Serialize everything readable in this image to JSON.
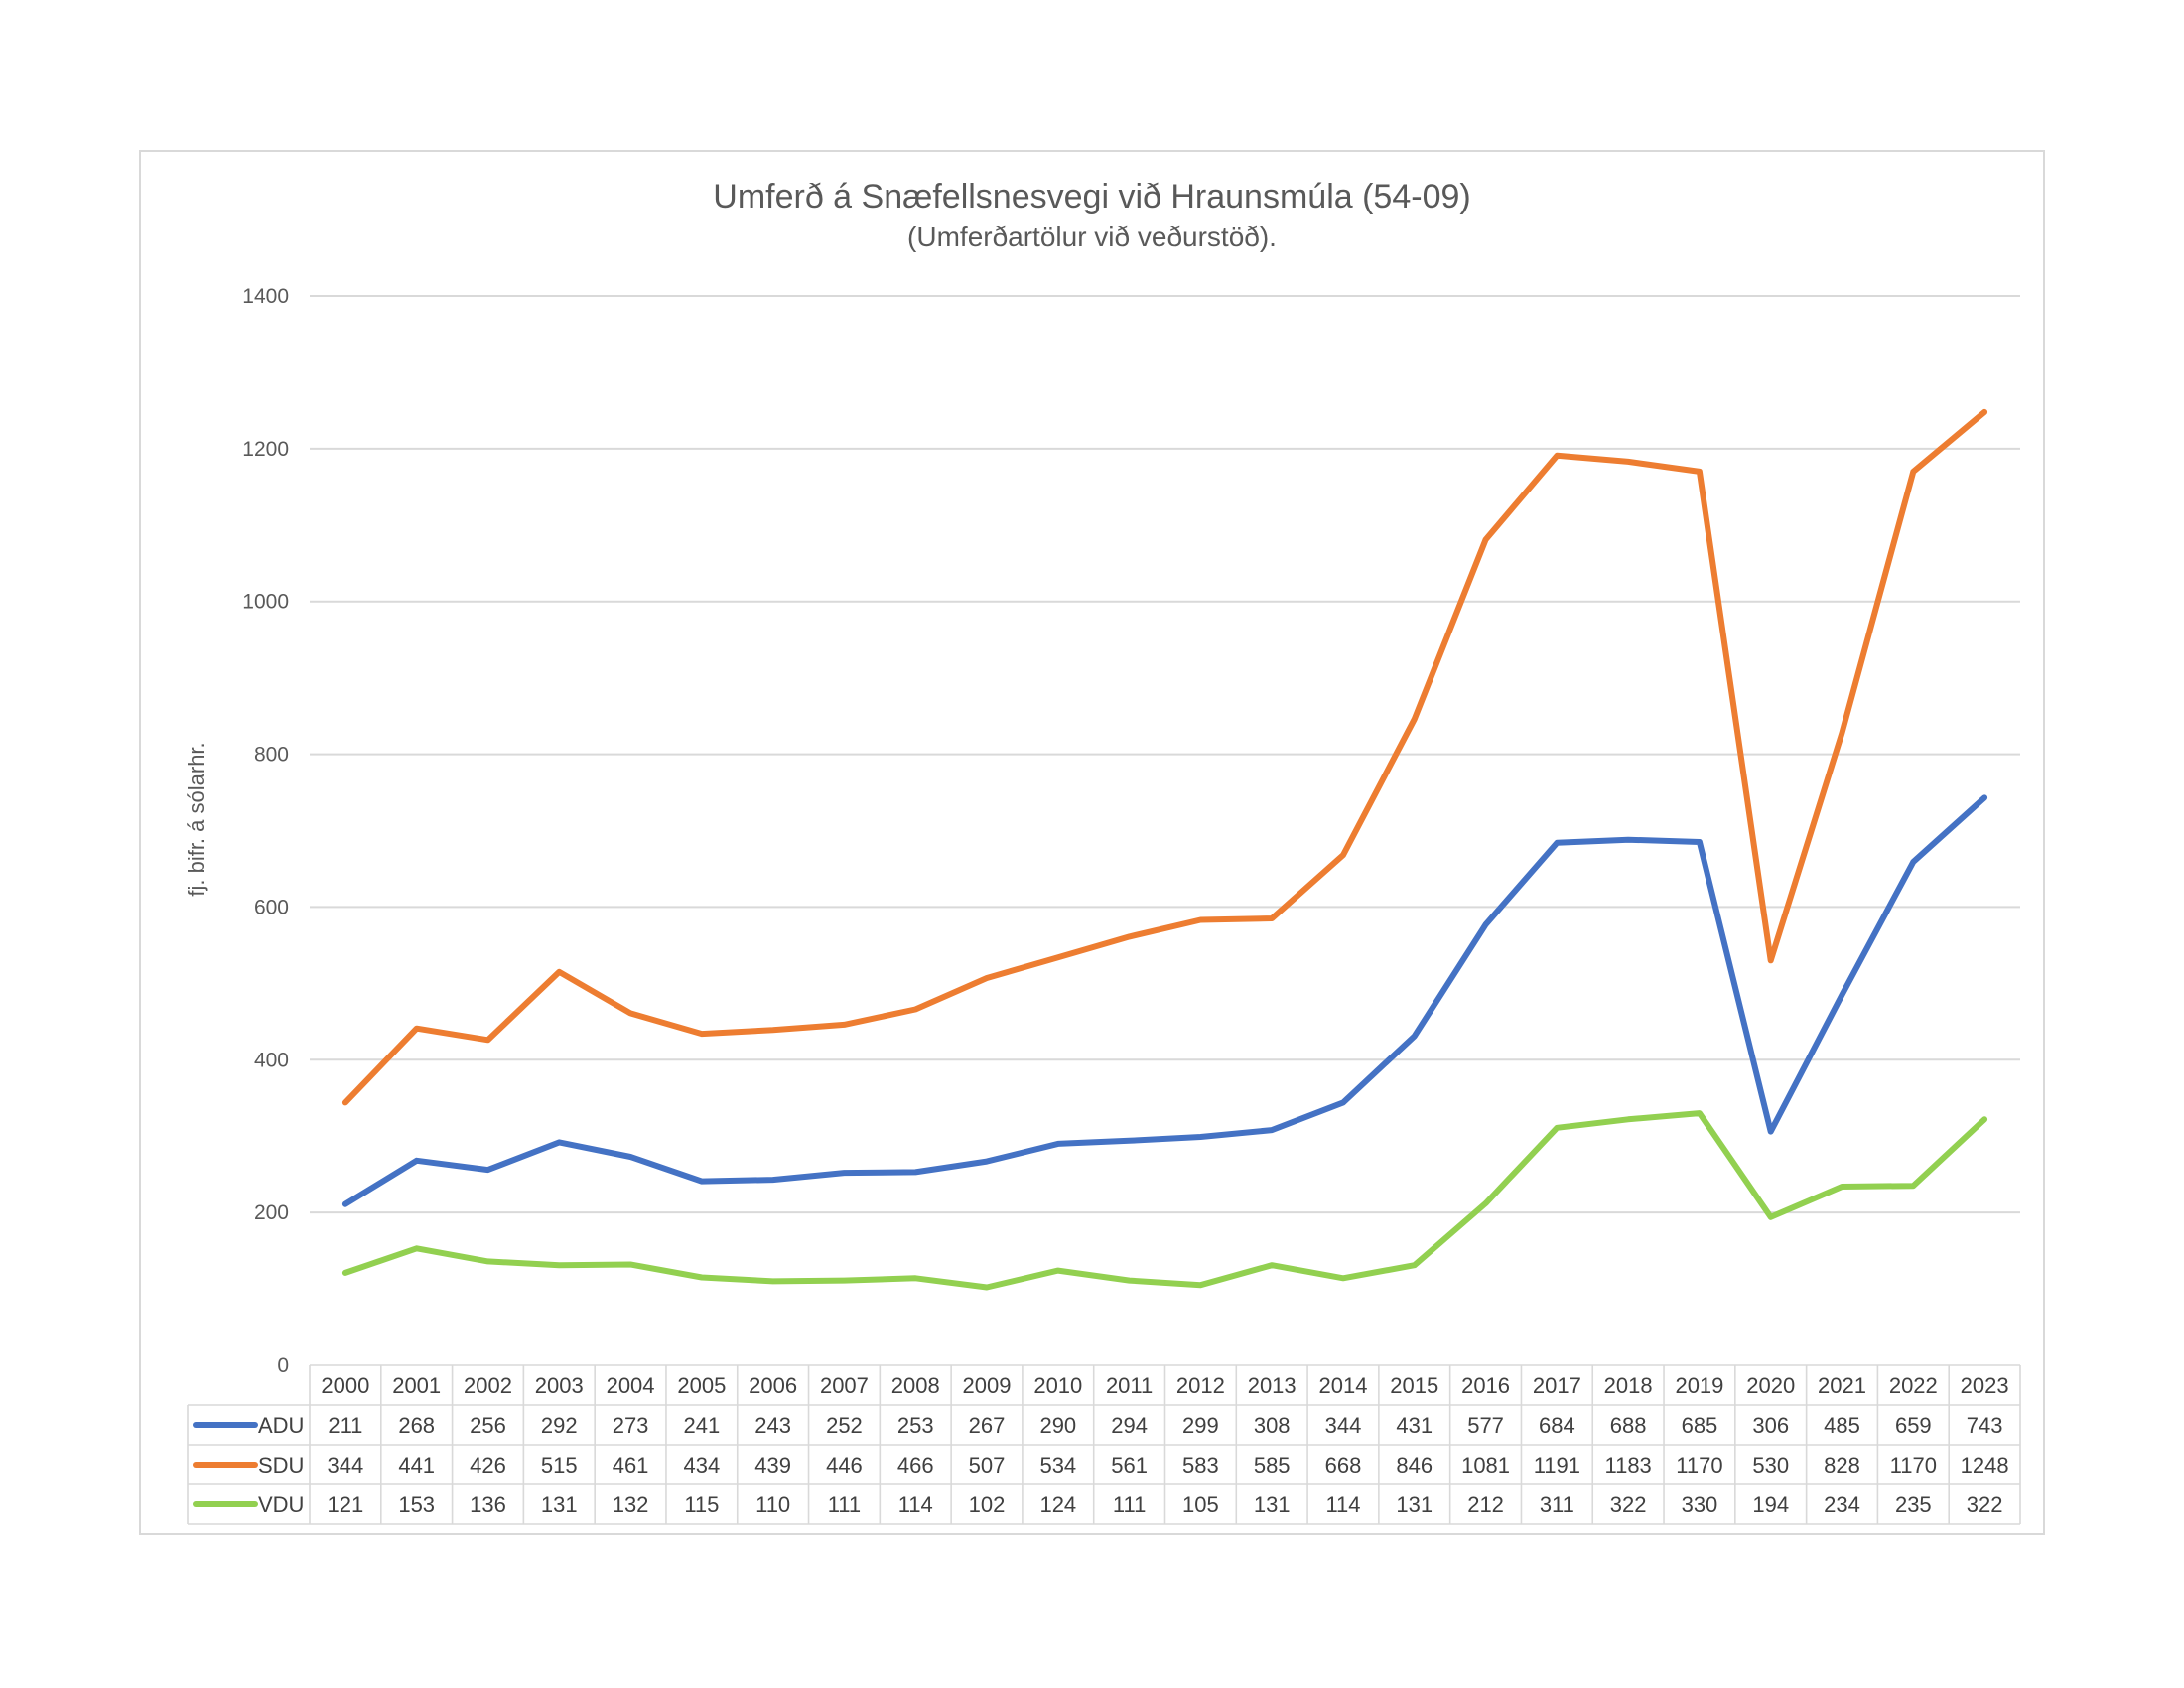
{
  "chart_data": {
    "type": "line",
    "title": "Umferð á Snæfellsnesvegi við Hraunsmúla (54-09)",
    "subtitle": "(Umferðartölur við veðurstöð).",
    "ylabel": "fj. bifr. á sólarhr.",
    "xlabel": "",
    "ylim": [
      0,
      1400
    ],
    "yticks": [
      "0",
      "200",
      "400",
      "600",
      "800",
      "1000",
      "1200",
      "1400"
    ],
    "grid": true,
    "legend": "data-table-below",
    "categories": [
      "2000",
      "2001",
      "2002",
      "2003",
      "2004",
      "2005",
      "2006",
      "2007",
      "2008",
      "2009",
      "2010",
      "2011",
      "2012",
      "2013",
      "2014",
      "2015",
      "2016",
      "2017",
      "2018",
      "2019",
      "2020",
      "2021",
      "2022",
      "2023"
    ],
    "series": [
      {
        "name": "ADU",
        "color": "#4472c4",
        "values": [
          211,
          268,
          256,
          292,
          273,
          241,
          243,
          252,
          253,
          267,
          290,
          294,
          299,
          308,
          344,
          431,
          577,
          684,
          688,
          685,
          306,
          485,
          659,
          743
        ]
      },
      {
        "name": "SDU",
        "color": "#ed7d31",
        "values": [
          344,
          441,
          426,
          515,
          461,
          434,
          439,
          446,
          466,
          507,
          534,
          561,
          583,
          585,
          668,
          846,
          1081,
          1191,
          1183,
          1170,
          530,
          828,
          1170,
          1248
        ]
      },
      {
        "name": "VDU",
        "color": "#92d050",
        "values": [
          121,
          153,
          136,
          131,
          132,
          115,
          110,
          111,
          114,
          102,
          124,
          111,
          105,
          131,
          114,
          131,
          212,
          311,
          322,
          330,
          194,
          234,
          235,
          322
        ]
      }
    ]
  }
}
